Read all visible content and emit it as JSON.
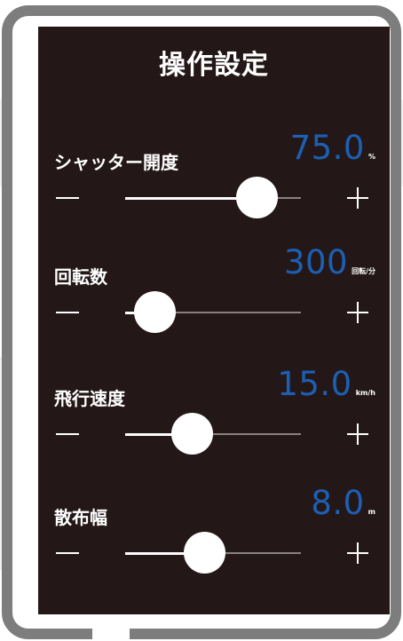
{
  "title": "操作設定",
  "controls": [
    {
      "label": "シャッター開度",
      "value": "75.0",
      "unit": "%",
      "level": 0.75
    },
    {
      "label": "回転数",
      "value": "300",
      "unit": "回転/分",
      "level": 0.17
    },
    {
      "label": "飛行速度",
      "value": "15.0",
      "unit": "km/h",
      "level": 0.38
    },
    {
      "label": "散布幅",
      "value": "8.0",
      "unit": "m",
      "level": 0.45
    }
  ],
  "colors": {
    "screen_background": "#231817",
    "value_accent": "#1c5fb4",
    "frame": "#7d7d7d",
    "track": "#8a8080"
  },
  "icons": {
    "decrease": "minus-icon",
    "increase": "plus-icon"
  }
}
